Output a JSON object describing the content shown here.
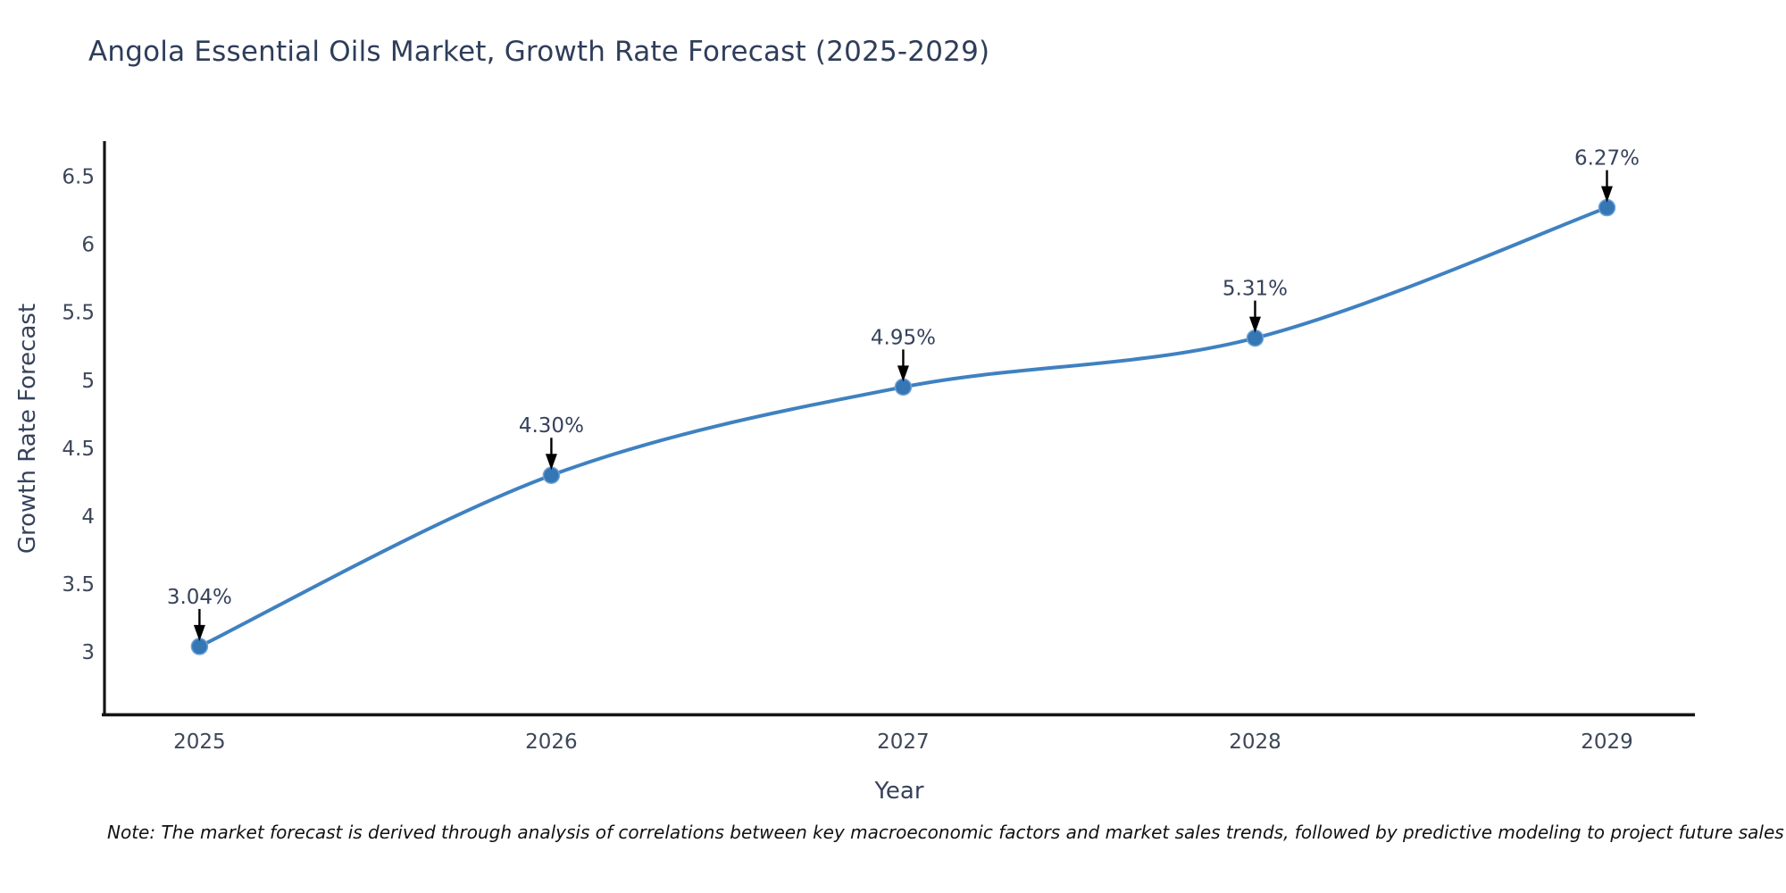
{
  "title": "Angola Essential Oils Market, Growth Rate Forecast (2025-2029)",
  "note": "Note: The market forecast is derived through analysis of correlations between key macroeconomic factors and market sales trends, followed by predictive modeling to project future sales",
  "chart_data": {
    "type": "line",
    "title": "Angola Essential Oils Market, Growth Rate Forecast (2025-2029)",
    "xlabel": "Year",
    "ylabel": "Growth Rate Forecast",
    "x": [
      2025,
      2026,
      2027,
      2028,
      2029
    ],
    "x_tick_labels": [
      "2025",
      "2026",
      "2027",
      "2028",
      "2029"
    ],
    "values": [
      3.04,
      4.3,
      4.95,
      5.31,
      6.27
    ],
    "point_labels": [
      "3.04%",
      "4.30%",
      "4.95%",
      "5.31%",
      "6.27%"
    ],
    "y_ticks": [
      3,
      3.5,
      4,
      4.5,
      5,
      5.5,
      6,
      6.5
    ],
    "xlim": [
      2024.73,
      2029.25
    ],
    "ylim": [
      2.54,
      6.76
    ],
    "grid": false,
    "legend": "none",
    "smooth_line": true,
    "colors": {
      "line": "#3f81c1",
      "marker_fill": "#3576b5",
      "marker_edge": "#6fa3d8",
      "spine": "#141414",
      "title_text": "#2e3d59",
      "tick_text": "#3d4759",
      "axis_title_text": "#36425c",
      "annotation_text": "#36425c",
      "annotation_arrow": "#000000",
      "note_text": "#111111"
    }
  }
}
